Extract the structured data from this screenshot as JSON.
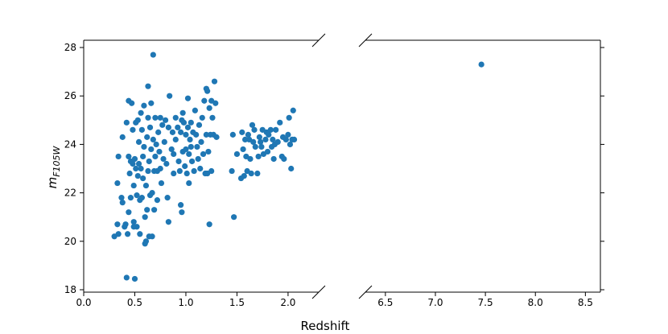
{
  "chart_data": {
    "type": "scatter",
    "title": "",
    "xlabel": "Redshift",
    "ylabel_main": "m",
    "ylabel_sub": "F105W",
    "color": "#1f77b4",
    "grid": false,
    "broken_x_axis": true,
    "panels": [
      {
        "xlim": [
          0.0,
          2.3
        ],
        "xticks": [
          "0.0",
          "0.5",
          "1.0",
          "1.5",
          "2.0"
        ],
        "tick_values": [
          0.0,
          0.5,
          1.0,
          1.5,
          2.0
        ]
      },
      {
        "xlim": [
          6.3,
          8.65
        ],
        "xticks": [
          "6.5",
          "7.0",
          "7.5",
          "8.0",
          "8.5"
        ],
        "tick_values": [
          6.5,
          7.0,
          7.5,
          8.0,
          8.5
        ]
      }
    ],
    "ylim": [
      17.9,
      28.3
    ],
    "yticks": [
      "18",
      "20",
      "22",
      "24",
      "26",
      "28"
    ],
    "ytick_values": [
      18,
      20,
      22,
      24,
      26,
      28
    ],
    "points": [
      [
        0.3,
        20.2
      ],
      [
        0.33,
        20.7
      ],
      [
        0.34,
        20.3
      ],
      [
        0.33,
        22.4
      ],
      [
        0.34,
        23.5
      ],
      [
        0.37,
        21.8
      ],
      [
        0.38,
        24.3
      ],
      [
        0.38,
        21.6
      ],
      [
        0.4,
        20.6
      ],
      [
        0.41,
        20.7
      ],
      [
        0.42,
        24.9
      ],
      [
        0.42,
        18.5
      ],
      [
        0.43,
        20.3
      ],
      [
        0.44,
        21.2
      ],
      [
        0.44,
        23.5
      ],
      [
        0.44,
        25.8
      ],
      [
        0.45,
        22.8
      ],
      [
        0.46,
        23.3
      ],
      [
        0.46,
        21.8
      ],
      [
        0.47,
        25.7
      ],
      [
        0.48,
        24.6
      ],
      [
        0.48,
        23.2
      ],
      [
        0.49,
        20.6
      ],
      [
        0.49,
        20.8
      ],
      [
        0.49,
        22.3
      ],
      [
        0.5,
        18.45
      ],
      [
        0.5,
        23.4
      ],
      [
        0.51,
        24.9
      ],
      [
        0.51,
        23.0
      ],
      [
        0.52,
        20.6
      ],
      [
        0.52,
        21.9
      ],
      [
        0.53,
        25.0
      ],
      [
        0.53,
        22.7
      ],
      [
        0.54,
        24.1
      ],
      [
        0.54,
        23.2
      ],
      [
        0.55,
        21.7
      ],
      [
        0.55,
        20.3
      ],
      [
        0.56,
        25.3
      ],
      [
        0.56,
        23.0
      ],
      [
        0.57,
        24.6
      ],
      [
        0.57,
        21.8
      ],
      [
        0.58,
        23.5
      ],
      [
        0.58,
        22.6
      ],
      [
        0.59,
        25.6
      ],
      [
        0.59,
        23.9
      ],
      [
        0.6,
        19.9
      ],
      [
        0.6,
        21.0
      ],
      [
        0.61,
        20.0
      ],
      [
        0.61,
        22.3
      ],
      [
        0.62,
        24.3
      ],
      [
        0.62,
        21.3
      ],
      [
        0.63,
        26.4
      ],
      [
        0.63,
        25.1
      ],
      [
        0.63,
        22.9
      ],
      [
        0.64,
        20.2
      ],
      [
        0.64,
        23.3
      ],
      [
        0.65,
        24.7
      ],
      [
        0.65,
        21.9
      ],
      [
        0.66,
        25.7
      ],
      [
        0.66,
        23.8
      ],
      [
        0.67,
        22.0
      ],
      [
        0.67,
        20.2
      ],
      [
        0.68,
        27.7
      ],
      [
        0.68,
        24.2
      ],
      [
        0.69,
        22.9
      ],
      [
        0.69,
        21.3
      ],
      [
        0.7,
        25.1
      ],
      [
        0.7,
        23.5
      ],
      [
        0.71,
        24.0
      ],
      [
        0.72,
        22.9
      ],
      [
        0.72,
        21.7
      ],
      [
        0.73,
        24.5
      ],
      [
        0.74,
        23.7
      ],
      [
        0.75,
        25.1
      ],
      [
        0.75,
        23.0
      ],
      [
        0.76,
        22.4
      ],
      [
        0.77,
        24.8
      ],
      [
        0.78,
        23.4
      ],
      [
        0.79,
        24.1
      ],
      [
        0.8,
        25.0
      ],
      [
        0.81,
        23.2
      ],
      [
        0.82,
        21.8
      ],
      [
        0.83,
        24.7
      ],
      [
        0.83,
        20.8
      ],
      [
        0.84,
        26.0
      ],
      [
        0.86,
        23.8
      ],
      [
        0.87,
        24.5
      ],
      [
        0.88,
        23.6
      ],
      [
        0.88,
        22.8
      ],
      [
        0.9,
        25.1
      ],
      [
        0.9,
        24.2
      ],
      [
        0.92,
        24.7
      ],
      [
        0.93,
        23.3
      ],
      [
        0.94,
        22.9
      ],
      [
        0.95,
        24.5
      ],
      [
        0.95,
        21.5
      ],
      [
        0.96,
        21.2
      ],
      [
        0.96,
        25.0
      ],
      [
        0.97,
        25.3
      ],
      [
        0.97,
        23.7
      ],
      [
        0.98,
        24.9
      ],
      [
        0.99,
        23.1
      ],
      [
        1.0,
        24.4
      ],
      [
        1.0,
        23.8
      ],
      [
        1.01,
        22.8
      ],
      [
        1.02,
        25.9
      ],
      [
        1.02,
        24.7
      ],
      [
        1.03,
        23.6
      ],
      [
        1.03,
        22.4
      ],
      [
        1.04,
        24.2
      ],
      [
        1.05,
        24.9
      ],
      [
        1.05,
        23.9
      ],
      [
        1.06,
        23.3
      ],
      [
        1.07,
        24.5
      ],
      [
        1.08,
        22.9
      ],
      [
        1.09,
        25.4
      ],
      [
        1.1,
        24.4
      ],
      [
        1.11,
        23.9
      ],
      [
        1.12,
        23.4
      ],
      [
        1.13,
        24.8
      ],
      [
        1.14,
        23.0
      ],
      [
        1.15,
        24.1
      ],
      [
        1.16,
        25.1
      ],
      [
        1.17,
        23.6
      ],
      [
        1.18,
        25.8
      ],
      [
        1.19,
        22.8
      ],
      [
        1.2,
        26.3
      ],
      [
        1.2,
        24.4
      ],
      [
        1.21,
        26.2
      ],
      [
        1.21,
        22.8
      ],
      [
        1.22,
        23.7
      ],
      [
        1.23,
        25.5
      ],
      [
        1.23,
        20.7
      ],
      [
        1.24,
        24.4
      ],
      [
        1.25,
        25.8
      ],
      [
        1.25,
        22.9
      ],
      [
        1.26,
        25.1
      ],
      [
        1.27,
        24.4
      ],
      [
        1.28,
        26.6
      ],
      [
        1.29,
        25.7
      ],
      [
        1.3,
        24.3
      ],
      [
        1.45,
        22.9
      ],
      [
        1.46,
        24.4
      ],
      [
        1.47,
        21.0
      ],
      [
        1.5,
        23.6
      ],
      [
        1.54,
        22.6
      ],
      [
        1.55,
        24.5
      ],
      [
        1.56,
        23.8
      ],
      [
        1.57,
        22.7
      ],
      [
        1.58,
        24.2
      ],
      [
        1.59,
        23.5
      ],
      [
        1.6,
        22.9
      ],
      [
        1.61,
        24.4
      ],
      [
        1.62,
        24.2
      ],
      [
        1.63,
        23.4
      ],
      [
        1.64,
        22.8
      ],
      [
        1.65,
        24.8
      ],
      [
        1.66,
        24.1
      ],
      [
        1.67,
        24.6
      ],
      [
        1.68,
        23.9
      ],
      [
        1.7,
        22.8
      ],
      [
        1.71,
        23.5
      ],
      [
        1.72,
        24.3
      ],
      [
        1.73,
        24.1
      ],
      [
        1.74,
        23.9
      ],
      [
        1.75,
        24.6
      ],
      [
        1.76,
        23.6
      ],
      [
        1.78,
        24.2
      ],
      [
        1.79,
        24.5
      ],
      [
        1.8,
        23.7
      ],
      [
        1.81,
        24.4
      ],
      [
        1.83,
        24.6
      ],
      [
        1.84,
        23.9
      ],
      [
        1.85,
        24.2
      ],
      [
        1.86,
        23.4
      ],
      [
        1.87,
        24.0
      ],
      [
        1.88,
        24.6
      ],
      [
        1.9,
        24.1
      ],
      [
        1.92,
        24.9
      ],
      [
        1.94,
        23.5
      ],
      [
        1.95,
        24.3
      ],
      [
        1.96,
        23.4
      ],
      [
        1.98,
        24.2
      ],
      [
        2.0,
        24.4
      ],
      [
        2.01,
        25.1
      ],
      [
        2.02,
        24.0
      ],
      [
        2.03,
        23.0
      ],
      [
        2.04,
        24.2
      ],
      [
        2.05,
        25.4
      ],
      [
        2.06,
        24.2
      ],
      [
        7.46,
        27.3
      ]
    ]
  }
}
